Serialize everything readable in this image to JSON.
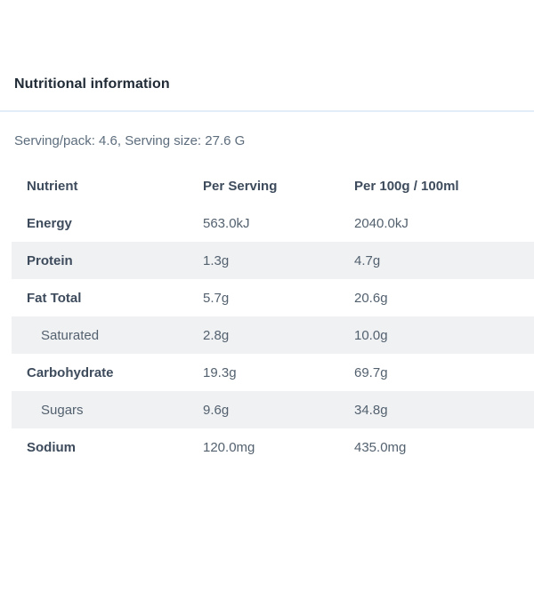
{
  "page": {
    "title": "Nutritional information",
    "serving_info": "Serving/pack: 4.6, Serving size: 27.6 G"
  },
  "table": {
    "columns": [
      "Nutrient",
      "Per Serving",
      "Per 100g / 100ml"
    ],
    "rows": [
      {
        "nutrient": "Energy",
        "per_serving": "563.0kJ",
        "per_100g": "2040.0kJ",
        "indent": false,
        "alt": false
      },
      {
        "nutrient": "Protein",
        "per_serving": "1.3g",
        "per_100g": "4.7g",
        "indent": false,
        "alt": true
      },
      {
        "nutrient": "Fat Total",
        "per_serving": "5.7g",
        "per_100g": "20.6g",
        "indent": false,
        "alt": false
      },
      {
        "nutrient": "Saturated",
        "per_serving": "2.8g",
        "per_100g": "10.0g",
        "indent": true,
        "alt": true
      },
      {
        "nutrient": "Carbohydrate",
        "per_serving": "19.3g",
        "per_100g": "69.7g",
        "indent": false,
        "alt": false
      },
      {
        "nutrient": "Sugars",
        "per_serving": "9.6g",
        "per_100g": "34.8g",
        "indent": true,
        "alt": true
      },
      {
        "nutrient": "Sodium",
        "per_serving": "120.0mg",
        "per_100g": "435.0mg",
        "indent": false,
        "alt": false
      }
    ]
  },
  "colors": {
    "row_alt_bg": "#f0f1f3",
    "divider": "#e3edf8",
    "title_text": "#202b36",
    "muted_text": "#5d6d7d",
    "label_text": "#3d4b5c",
    "value_text": "#53616f"
  }
}
